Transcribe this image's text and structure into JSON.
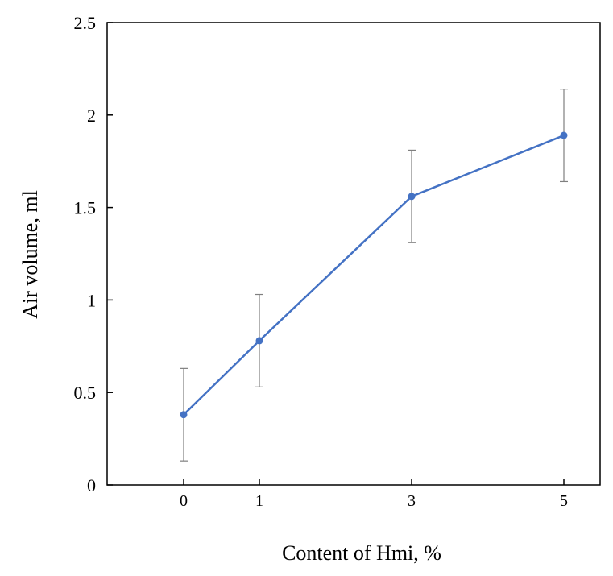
{
  "chart_data": {
    "type": "line",
    "title": "",
    "xlabel": "Content of Hmi, %",
    "ylabel": "Air volume, ml",
    "categories": [
      "0",
      "1",
      "3",
      "5"
    ],
    "y_ticks": [
      "0",
      "0.5",
      "1",
      "1.5",
      "2",
      "2.5"
    ],
    "ylim": [
      0,
      2.5
    ],
    "grid": false,
    "legend": "none",
    "series": [
      {
        "values": [
          0.38,
          0.78,
          1.56,
          1.89
        ],
        "error": [
          0.25,
          0.25,
          0.25,
          0.25
        ],
        "color": "#4472C4"
      }
    ],
    "error_bar_color": "#7f7f7f"
  }
}
